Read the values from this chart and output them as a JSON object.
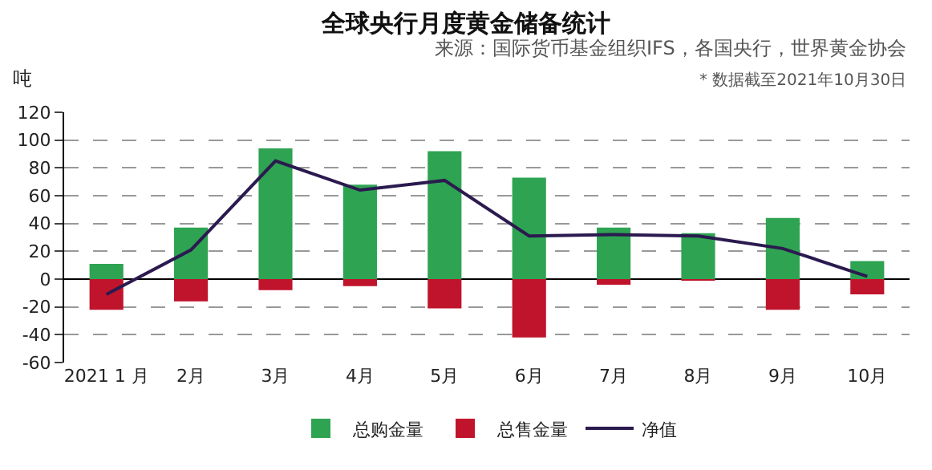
{
  "chart_data": {
    "type": "bar",
    "title": "全球央行月度黄金储备统计",
    "ylabel": "吨",
    "annotations": [
      "来源：国际货币基金组织IFS，各国央行，世界黄金协会",
      "* 数据截至2021年10月30日"
    ],
    "categories": [
      "2021 1 月",
      "2月",
      "3月",
      "4月",
      "5月",
      "6月",
      "7月",
      "8月",
      "9月",
      "10月"
    ],
    "series": [
      {
        "name": "总购金量",
        "color": "#2ea352",
        "values": [
          11,
          37,
          94,
          68,
          92,
          73,
          37,
          33,
          44,
          13
        ]
      },
      {
        "name": "总售金量",
        "color": "#c0142c",
        "values": [
          -22,
          -16,
          -8,
          -5,
          -21,
          -42,
          -4,
          -1,
          -22,
          -11
        ]
      },
      {
        "name": "净值",
        "type": "line",
        "color": "#2b1a4f",
        "values": [
          -11,
          21,
          85,
          64,
          71,
          31,
          32,
          31,
          22,
          2
        ]
      }
    ],
    "stacked": true,
    "ylim": [
      -60,
      120
    ],
    "yticks": [
      -60,
      -40,
      -20,
      0,
      20,
      40,
      60,
      80,
      100,
      120
    ],
    "grid": "y",
    "legend": "bottom",
    "marker": "none",
    "line_style": "solid"
  }
}
